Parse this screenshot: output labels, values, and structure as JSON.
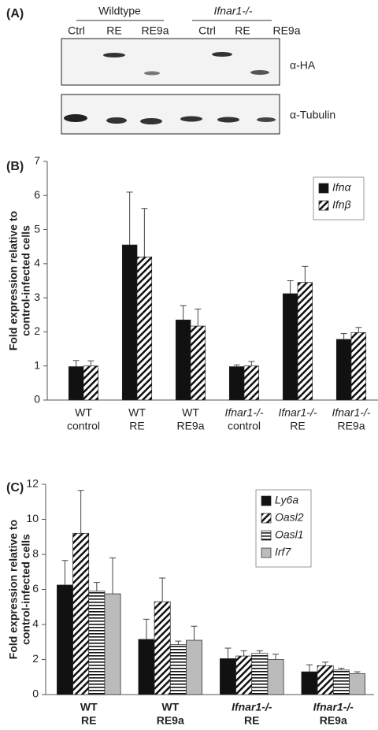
{
  "panel_a": {
    "label": "(A)",
    "groups": [
      "Wildtype",
      "Ifnar1-/-"
    ],
    "lanes": [
      "Ctrl",
      "RE",
      "RE9a",
      "Ctrl",
      "RE",
      "RE9a"
    ],
    "blots": [
      "α-HA",
      "α-Tubulin"
    ]
  },
  "chart_data": [
    {
      "type": "bar",
      "panel_label": "(B)",
      "ylabel": [
        "Fold expression relative to",
        "control-infected cells"
      ],
      "categories": [
        [
          "WT",
          "control"
        ],
        [
          "WT",
          "RE"
        ],
        [
          "WT",
          "RE9a"
        ],
        [
          "Ifnar1-/-",
          "control"
        ],
        [
          "Ifnar1-/-",
          "RE"
        ],
        [
          "Ifnar1-/-",
          "RE9a"
        ]
      ],
      "series": [
        {
          "name": "Ifnα",
          "color": "#111111",
          "pattern": "solid",
          "values": [
            0.98,
            4.55,
            2.35,
            0.98,
            3.12,
            1.78
          ],
          "errors": [
            0.18,
            1.55,
            0.42,
            0.05,
            0.38,
            0.17
          ]
        },
        {
          "name": "Ifnβ",
          "color": "#111111",
          "pattern": "diagonal",
          "values": [
            1.0,
            4.2,
            2.17,
            1.0,
            3.45,
            1.98
          ],
          "errors": [
            0.15,
            1.42,
            0.5,
            0.13,
            0.47,
            0.15
          ]
        }
      ],
      "ylim": [
        0,
        7
      ],
      "yticks": [
        0,
        1,
        2,
        3,
        4,
        5,
        6,
        7
      ],
      "legend": "upper right"
    },
    {
      "type": "bar",
      "panel_label": "(C)",
      "ylabel": [
        "Fold expression relative to",
        "control-infected cells"
      ],
      "categories": [
        [
          "WT",
          "RE"
        ],
        [
          "WT",
          "RE9a"
        ],
        [
          "Ifnar1-/-",
          "RE"
        ],
        [
          "Ifnar1-/-",
          "RE9a"
        ]
      ],
      "series": [
        {
          "name": "Ly6a",
          "color": "#111111",
          "pattern": "solid",
          "values": [
            6.25,
            3.15,
            2.05,
            1.3
          ],
          "errors": [
            1.4,
            1.15,
            0.6,
            0.4
          ]
        },
        {
          "name": "Oasl2",
          "color": "#111111",
          "pattern": "diagonal",
          "values": [
            9.2,
            5.3,
            2.2,
            1.65
          ],
          "errors": [
            2.45,
            1.35,
            0.3,
            0.2
          ]
        },
        {
          "name": "Oasl1",
          "color": "#111111",
          "pattern": "horizontal",
          "values": [
            5.9,
            2.85,
            2.35,
            1.4
          ],
          "errors": [
            0.5,
            0.2,
            0.15,
            0.1
          ]
        },
        {
          "name": "Irf7",
          "color": "#bbbbbb",
          "pattern": "solid",
          "values": [
            5.75,
            3.1,
            2.0,
            1.2
          ],
          "errors": [
            2.05,
            0.8,
            0.3,
            0.1
          ]
        }
      ],
      "ylim": [
        0,
        12
      ],
      "yticks": [
        0,
        2,
        4,
        6,
        8,
        10,
        12
      ],
      "legend": "upper center",
      "bold_categories": true
    }
  ]
}
